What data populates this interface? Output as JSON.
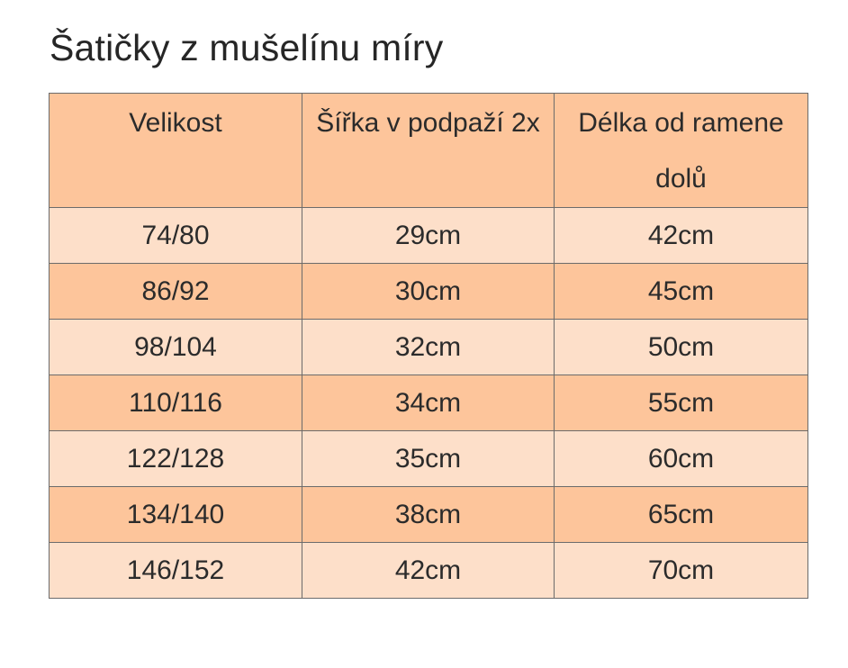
{
  "title": "Šatičky z mušelínu míry",
  "colors": {
    "header_bg": "#fdc59b",
    "row_light": "#fddfc9",
    "row_dark": "#fdc59b",
    "border": "#6b6b6b"
  },
  "table": {
    "headers": [
      "Velikost",
      "Šířka v podpaží 2x",
      "Délka od ramene dolů"
    ],
    "rows": [
      [
        "74/80",
        "29cm",
        "42cm"
      ],
      [
        "86/92",
        "30cm",
        "45cm"
      ],
      [
        "98/104",
        "32cm",
        "50cm"
      ],
      [
        "110/116",
        "34cm",
        "55cm"
      ],
      [
        "122/128",
        "35cm",
        "60cm"
      ],
      [
        "134/140",
        "38cm",
        "65cm"
      ],
      [
        "146/152",
        "42cm",
        "70cm"
      ]
    ]
  }
}
